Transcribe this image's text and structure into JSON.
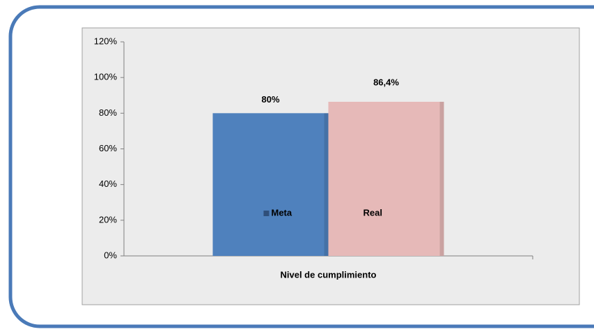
{
  "chart_data": {
    "type": "bar",
    "categories": [
      "Nivel de cumplimiento"
    ],
    "series": [
      {
        "name": "Meta",
        "color": "#4f81bd",
        "values": [
          80
        ],
        "value_labels": [
          "80%"
        ]
      },
      {
        "name": "Real",
        "color": "#e6b9b8",
        "values": [
          86.4
        ],
        "value_labels": [
          "86,4%"
        ]
      }
    ],
    "ylim": [
      0,
      120
    ],
    "yticks": [
      {
        "value": 0,
        "label": "0%"
      },
      {
        "value": 20,
        "label": "20%"
      },
      {
        "value": 40,
        "label": "40%"
      },
      {
        "value": 60,
        "label": "60%"
      },
      {
        "value": 80,
        "label": "80%"
      },
      {
        "value": 100,
        "label": "100%"
      },
      {
        "value": 120,
        "label": "120%"
      }
    ]
  }
}
